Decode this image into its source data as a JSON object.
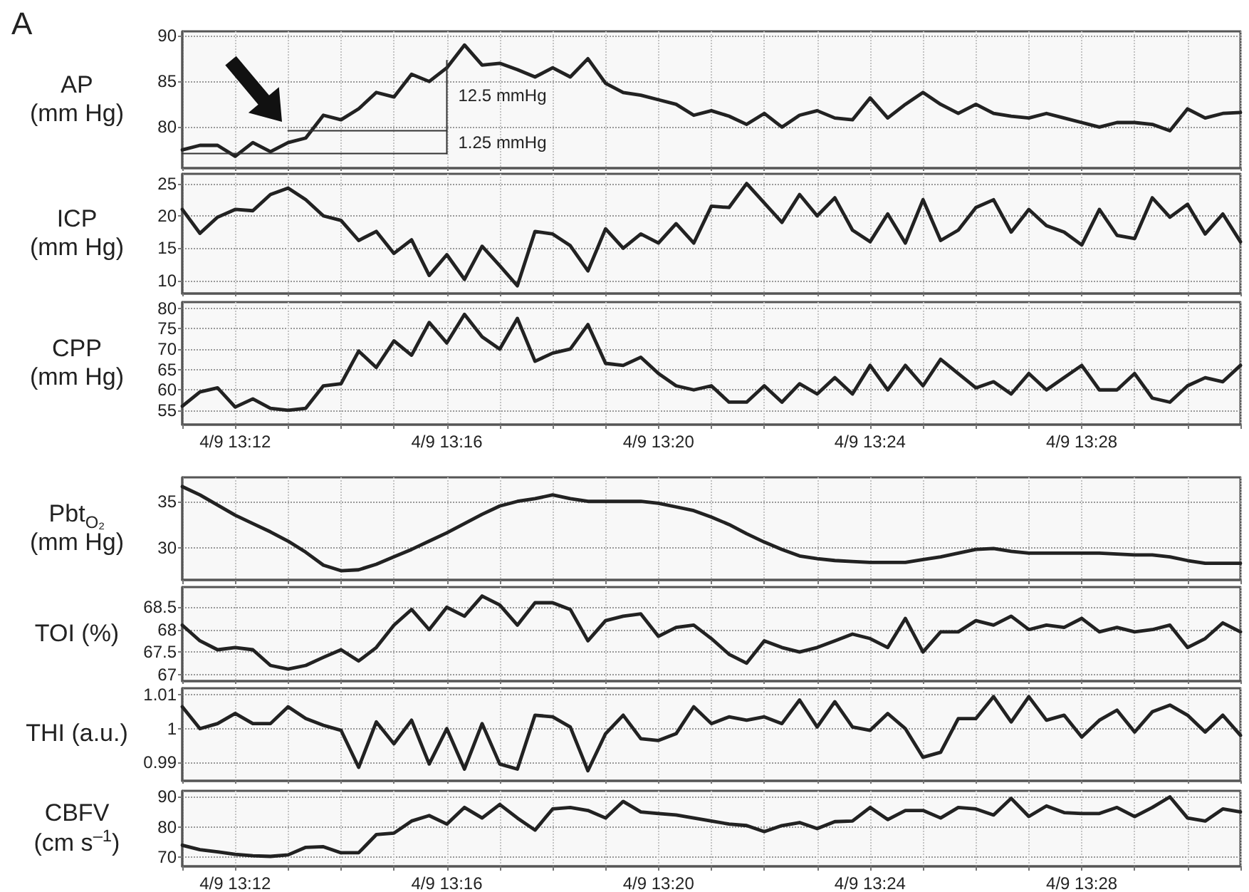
{
  "chart_data": [
    {
      "type": "line",
      "title": "A",
      "ylabel": "AP\n(mm Hg)",
      "tick_labels": "y",
      "grid": true,
      "marker": "none",
      "ylim": [
        75.5,
        90.5
      ],
      "yticks": [
        80,
        85,
        90
      ],
      "categories": [
        null,
        null,
        null,
        "4/9 13:12",
        null,
        null,
        null,
        null,
        null,
        null,
        null,
        null,
        null,
        null,
        null,
        "4/9 13:16",
        null,
        null,
        null,
        null,
        null,
        null,
        null,
        null,
        null,
        null,
        null,
        "4/9 13:20",
        null,
        null,
        null,
        null,
        null,
        null,
        null,
        null,
        null,
        null,
        null,
        "4/9 13:24",
        null,
        null,
        null,
        null,
        null,
        null,
        null,
        null,
        null,
        null,
        null,
        "4/9 13:28",
        null,
        null,
        null,
        null,
        null,
        null,
        null,
        null,
        null
      ],
      "series": [
        {
          "color": "#222222",
          "values": [
            77.5,
            78,
            78,
            76.8,
            78.3,
            77.3,
            78.3,
            78.8,
            81.3,
            80.8,
            82,
            83.8,
            83.3,
            85.8,
            85,
            86.5,
            89,
            86.8,
            87,
            86.3,
            85.5,
            86.5,
            85.5,
            87.5,
            84.8,
            83.8,
            83.5,
            83,
            82.5,
            81.3,
            81.8,
            81.2,
            80.3,
            81.5,
            80,
            81.3,
            81.8,
            81,
            80.8,
            83.2,
            81,
            82.5,
            83.8,
            82.5,
            81.5,
            82.5,
            81.5,
            81.2,
            81,
            81.5,
            81,
            80.5,
            80,
            80.5,
            80.5,
            80.3,
            79.6,
            82,
            81,
            81.5,
            81.6
          ]
        },
        {
          "color": "#333333",
          "values": [
            77.1,
            77.1,
            77.1,
            77.1,
            77.1,
            77.1,
            77.1,
            77.1,
            77.1,
            77.1,
            77.1,
            77.1,
            77.1,
            77.1,
            77.1,
            77.1,
            null,
            null,
            null,
            null,
            null,
            null,
            null,
            null,
            null,
            null,
            null,
            null,
            null,
            null,
            null,
            null,
            null,
            null,
            null,
            null,
            null,
            null,
            null,
            null,
            null,
            null,
            null,
            null,
            null,
            null,
            null,
            null,
            null,
            null,
            null,
            null,
            null,
            null,
            null,
            null,
            null,
            null,
            null,
            null,
            null
          ]
        },
        {
          "color": "#333333",
          "values": [
            null,
            null,
            null,
            null,
            null,
            null,
            79.6,
            79.6,
            79.6,
            79.6,
            79.6,
            79.6,
            79.6,
            79.6,
            79.6,
            79.6,
            null,
            null,
            null,
            null,
            null,
            null,
            null,
            null,
            null,
            null,
            null,
            null,
            null,
            null,
            null,
            null,
            null,
            null,
            null,
            null,
            null,
            null,
            null,
            null,
            null,
            null,
            null,
            null,
            null,
            null,
            null,
            null,
            null,
            null,
            null,
            null,
            null,
            null,
            null,
            null,
            null,
            null,
            null,
            null,
            null
          ]
        },
        {
          "color": "#333333",
          "x": [
            "4/9 13:16",
            "4/9 13:16"
          ],
          "values": [
            77.1,
            87.3
          ]
        }
      ],
      "annotations": [
        "12.5 mmHg",
        "1.25 mmHg"
      ]
    },
    {
      "type": "line",
      "ylabel": "ICP\n(mm Hg)",
      "tick_labels": "y",
      "grid": true,
      "marker": "none",
      "ylim": [
        8,
        26.5
      ],
      "yticks": [
        10,
        15,
        20,
        25
      ],
      "categories": [
        null,
        null,
        null,
        "4/9 13:12",
        null,
        null,
        null,
        null,
        null,
        null,
        null,
        null,
        null,
        null,
        null,
        "4/9 13:16",
        null,
        null,
        null,
        null,
        null,
        null,
        null,
        null,
        null,
        null,
        null,
        "4/9 13:20",
        null,
        null,
        null,
        null,
        null,
        null,
        null,
        null,
        null,
        null,
        null,
        "4/9 13:24",
        null,
        null,
        null,
        null,
        null,
        null,
        null,
        null,
        null,
        null,
        null,
        "4/9 13:28",
        null,
        null,
        null,
        null,
        null,
        null,
        null,
        null,
        null
      ],
      "series": [
        {
          "color": "#222222",
          "values": [
            21,
            17.3,
            19.8,
            21,
            20.8,
            23.3,
            24.3,
            22.5,
            20,
            19.3,
            16.2,
            17.6,
            14.2,
            16.3,
            10.8,
            14,
            10.2,
            15.3,
            12.3,
            9.2,
            17.6,
            17.2,
            15.4,
            11.5,
            18,
            15,
            17.2,
            15.8,
            18.8,
            15.8,
            21.5,
            21.3,
            25,
            22,
            19,
            23.3,
            20,
            22.8,
            17.8,
            16,
            20.3,
            15.8,
            22.5,
            16.2,
            17.8,
            21.3,
            22.5,
            17.5,
            21,
            18.5,
            17.5,
            15.5,
            21,
            17,
            16.5,
            22.8,
            19.8,
            21.8,
            17.2,
            20.3,
            16
          ]
        }
      ]
    },
    {
      "type": "line",
      "ylabel": "CPP\n(mm Hg)",
      "grid": true,
      "marker": "none",
      "ylim": [
        51.5,
        81.5
      ],
      "yticks": [
        55,
        60,
        65,
        70,
        75,
        80
      ],
      "categories": [
        null,
        null,
        null,
        "4/9 13:12",
        null,
        null,
        null,
        null,
        null,
        null,
        null,
        null,
        null,
        null,
        null,
        "4/9 13:16",
        null,
        null,
        null,
        null,
        null,
        null,
        null,
        null,
        null,
        null,
        null,
        "4/9 13:20",
        null,
        null,
        null,
        null,
        null,
        null,
        null,
        null,
        null,
        null,
        null,
        "4/9 13:24",
        null,
        null,
        null,
        null,
        null,
        null,
        null,
        null,
        null,
        null,
        null,
        "4/9 13:28",
        null,
        null,
        null,
        null,
        null,
        null,
        null,
        null,
        null
      ],
      "series": [
        {
          "color": "#222222",
          "values": [
            56,
            59.5,
            60.5,
            55.8,
            57.8,
            55.5,
            55,
            55.5,
            61,
            61.5,
            69.5,
            65.5,
            72,
            68.5,
            76.5,
            71.5,
            78.5,
            73,
            70,
            77.5,
            67,
            69,
            70,
            76,
            66.5,
            66,
            68,
            64,
            61,
            60,
            61,
            57,
            57,
            61,
            57,
            61.5,
            59,
            63,
            59,
            66,
            60,
            66,
            61,
            67.5,
            64,
            60.5,
            62,
            59,
            64,
            60,
            63,
            66,
            60,
            60,
            64,
            58,
            57,
            61,
            63,
            62,
            66
          ]
        }
      ]
    },
    {
      "type": "line",
      "ylabel": "Pbt$_{O₂}$\n(mm Hg)",
      "tick_labels": "y",
      "grid": true,
      "marker": "none",
      "ylim": [
        26.5,
        37.6
      ],
      "yticks": [
        30,
        35
      ],
      "categories": [
        null,
        null,
        null,
        "4/9 13:12",
        null,
        null,
        null,
        null,
        null,
        null,
        null,
        null,
        null,
        null,
        null,
        "4/9 13:16",
        null,
        null,
        null,
        null,
        null,
        null,
        null,
        null,
        null,
        null,
        null,
        "4/9 13:20",
        null,
        null,
        null,
        null,
        null,
        null,
        null,
        null,
        null,
        null,
        null,
        "4/9 13:24",
        null,
        null,
        null,
        null,
        null,
        null,
        null,
        null,
        null,
        null,
        null,
        "4/9 13:28",
        null,
        null,
        null,
        null,
        null,
        null,
        null,
        null,
        null
      ],
      "series": [
        {
          "color": "#222222",
          "values": [
            36.6,
            35.7,
            34.6,
            33.5,
            32.6,
            31.7,
            30.7,
            29.5,
            28.1,
            27.5,
            27.6,
            28.2,
            29,
            29.8,
            30.7,
            31.6,
            32.6,
            33.6,
            34.5,
            35,
            35.3,
            35.7,
            35.3,
            35,
            35,
            35,
            35,
            34.8,
            34.4,
            34,
            33.3,
            32.5,
            31.5,
            30.6,
            29.8,
            29.1,
            28.8,
            28.6,
            28.5,
            28.4,
            28.4,
            28.4,
            28.7,
            29,
            29.4,
            29.8,
            29.9,
            29.6,
            29.4,
            29.4,
            29.4,
            29.4,
            29.4,
            29.3,
            29.2,
            29.2,
            29,
            28.6,
            28.3,
            28.3,
            28.3
          ]
        }
      ]
    },
    {
      "type": "line",
      "ylabel": "TOI (%)",
      "tick_labels": "y",
      "grid": true,
      "marker": "none",
      "ylim": [
        66.85,
        68.95
      ],
      "yticks": [
        67,
        67.5,
        68,
        68.5
      ],
      "categories": [
        null,
        null,
        null,
        "4/9 13:12",
        null,
        null,
        null,
        null,
        null,
        null,
        null,
        null,
        null,
        null,
        null,
        "4/9 13:16",
        null,
        null,
        null,
        null,
        null,
        null,
        null,
        null,
        null,
        null,
        null,
        "4/9 13:20",
        null,
        null,
        null,
        null,
        null,
        null,
        null,
        null,
        null,
        null,
        null,
        "4/9 13:24",
        null,
        null,
        null,
        null,
        null,
        null,
        null,
        null,
        null,
        null,
        null,
        "4/9 13:28",
        null,
        null,
        null,
        null,
        null,
        null,
        null,
        null,
        null
      ],
      "series": [
        {
          "color": "#222222",
          "values": [
            68.1,
            67.75,
            67.55,
            67.6,
            67.55,
            67.2,
            67.12,
            67.2,
            67.38,
            67.55,
            67.3,
            67.6,
            68.1,
            68.45,
            68,
            68.5,
            68.3,
            68.75,
            68.55,
            68.1,
            68.6,
            68.6,
            68.45,
            67.75,
            68.2,
            68.3,
            68.35,
            67.85,
            68.05,
            68.1,
            67.8,
            67.45,
            67.25,
            67.75,
            67.6,
            67.5,
            67.6,
            67.75,
            67.9,
            67.8,
            67.6,
            68.25,
            67.5,
            67.95,
            67.95,
            68.2,
            68.1,
            68.3,
            68,
            68.1,
            68.05,
            68.25,
            67.95,
            68.05,
            67.95,
            68,
            68.1,
            67.6,
            67.8,
            68.15,
            67.95
          ]
        }
      ]
    },
    {
      "type": "line",
      "ylabel": "THI (a.u.)",
      "tick_labels": "y",
      "grid": true,
      "marker": "none",
      "ylim": [
        0.9845,
        1.012
      ],
      "yticks": [
        0.99,
        1,
        1.01
      ],
      "categories": [
        null,
        null,
        null,
        "4/9 13:12",
        null,
        null,
        null,
        null,
        null,
        null,
        null,
        null,
        null,
        null,
        null,
        "4/9 13:16",
        null,
        null,
        null,
        null,
        null,
        null,
        null,
        null,
        null,
        null,
        null,
        "4/9 13:20",
        null,
        null,
        null,
        null,
        null,
        null,
        null,
        null,
        null,
        null,
        null,
        "4/9 13:24",
        null,
        null,
        null,
        null,
        null,
        null,
        null,
        null,
        null,
        null,
        null,
        "4/9 13:28",
        null,
        null,
        null,
        null,
        null,
        null,
        null,
        null,
        null
      ],
      "series": [
        {
          "color": "#222222",
          "values": [
            1.0065,
            1,
            1.0015,
            1.0045,
            1.0015,
            1.0015,
            1.0065,
            1.003,
            1.001,
            0.9995,
            0.9885,
            1.002,
            0.9955,
            1.0025,
            0.9895,
            1,
            0.988,
            1.0015,
            0.9895,
            0.988,
            1.004,
            1.0035,
            1.0005,
            0.9875,
            0.9985,
            1.004,
            0.997,
            0.9965,
            0.9985,
            1.0065,
            1.0015,
            1.0035,
            1.0025,
            1.0035,
            1.0015,
            1.0085,
            1.0005,
            1.008,
            1.0005,
            0.9995,
            1.0045,
            1,
            0.9915,
            0.993,
            1.003,
            1.003,
            1.0095,
            1.002,
            1.0095,
            1.0025,
            1.004,
            0.9975,
            1.0025,
            1.0055,
            0.999,
            1.005,
            1.007,
            1.004,
            0.999,
            1.004,
            0.998
          ]
        }
      ]
    },
    {
      "type": "line",
      "ylabel": "CBFV\n(cm s$^{–1}$)",
      "grid": true,
      "marker": "none",
      "ylim": [
        67,
        92
      ],
      "yticks": [
        70,
        80,
        90
      ],
      "categories": [
        null,
        null,
        null,
        "4/9 13:12",
        null,
        null,
        null,
        null,
        null,
        null,
        null,
        null,
        null,
        null,
        null,
        "4/9 13:16",
        null,
        null,
        null,
        null,
        null,
        null,
        null,
        null,
        null,
        null,
        null,
        "4/9 13:20",
        null,
        null,
        null,
        null,
        null,
        null,
        null,
        null,
        null,
        null,
        null,
        "4/9 13:24",
        null,
        null,
        null,
        null,
        null,
        null,
        null,
        null,
        null,
        null,
        null,
        "4/9 13:28",
        null,
        null,
        null,
        null,
        null,
        null,
        null,
        null,
        null
      ],
      "series": [
        {
          "color": "#222222",
          "values": [
            74,
            72.5,
            71.8,
            71,
            70.5,
            70.3,
            70.8,
            73.3,
            73.5,
            71.5,
            71.5,
            77.5,
            78,
            82,
            83.8,
            81,
            86.5,
            83,
            87.5,
            83,
            79,
            86,
            86.5,
            85.5,
            83,
            88.5,
            85,
            84.5,
            84,
            83,
            82,
            81,
            80.5,
            78.5,
            80.5,
            81.5,
            79.5,
            81.8,
            82,
            86.5,
            82.5,
            85.5,
            85.5,
            83,
            86.5,
            86,
            84,
            89.5,
            83.5,
            87,
            84.8,
            84.5,
            84.5,
            86.5,
            83.5,
            86.5,
            90,
            83,
            82,
            86,
            85
          ]
        }
      ]
    }
  ]
}
